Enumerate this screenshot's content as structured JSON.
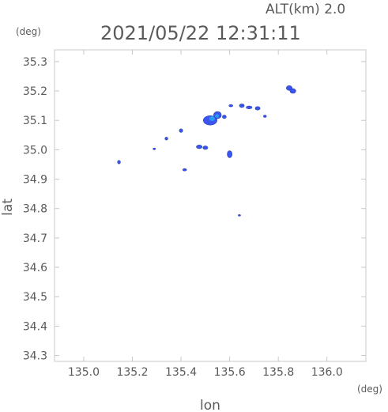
{
  "header": {
    "altitude_label": "ALT(km)  2.0",
    "timestamp": "2021/05/22 12:31:11",
    "y_unit": "(deg)",
    "x_unit": "(deg)"
  },
  "chart_data": {
    "type": "scatter",
    "title": "2021/05/22 12:31:11",
    "xlabel": "lon",
    "ylabel": "lat",
    "xlim": [
      134.88,
      136.16
    ],
    "ylim": [
      34.28,
      35.34
    ],
    "x_ticks": [
      "135.0",
      "135.2",
      "135.4",
      "135.6",
      "135.8",
      "136.0"
    ],
    "y_ticks": [
      "34.3",
      "34.4",
      "34.5",
      "34.6",
      "34.7",
      "34.8",
      "34.9",
      "35.0",
      "35.1",
      "35.2",
      "35.3"
    ],
    "grid": false,
    "colors": {
      "echo_main": "#3a55f2",
      "echo_strong": "#2a9cf0",
      "echo_dark": "#2a3fa8",
      "axis": "#c8c8c8",
      "text": "#5a5a5a"
    },
    "echoes": [
      {
        "lon": 135.145,
        "lat": 34.958,
        "rx": 0.006,
        "ry": 0.006
      },
      {
        "lon": 135.29,
        "lat": 35.003,
        "rx": 0.005,
        "ry": 0.003
      },
      {
        "lon": 135.34,
        "lat": 35.038,
        "rx": 0.006,
        "ry": 0.005
      },
      {
        "lon": 135.4,
        "lat": 35.065,
        "rx": 0.007,
        "ry": 0.006
      },
      {
        "lon": 135.415,
        "lat": 34.932,
        "rx": 0.008,
        "ry": 0.004
      },
      {
        "lon": 135.475,
        "lat": 35.01,
        "rx": 0.012,
        "ry": 0.006
      },
      {
        "lon": 135.5,
        "lat": 35.007,
        "rx": 0.01,
        "ry": 0.006
      },
      {
        "lon": 135.52,
        "lat": 35.1,
        "rx": 0.028,
        "ry": 0.016
      },
      {
        "lon": 135.55,
        "lat": 35.118,
        "rx": 0.016,
        "ry": 0.012
      },
      {
        "lon": 135.578,
        "lat": 35.112,
        "rx": 0.008,
        "ry": 0.006
      },
      {
        "lon": 135.6,
        "lat": 34.985,
        "rx": 0.01,
        "ry": 0.012
      },
      {
        "lon": 135.605,
        "lat": 35.15,
        "rx": 0.008,
        "ry": 0.004
      },
      {
        "lon": 135.65,
        "lat": 35.15,
        "rx": 0.01,
        "ry": 0.006
      },
      {
        "lon": 135.68,
        "lat": 35.144,
        "rx": 0.012,
        "ry": 0.005
      },
      {
        "lon": 135.715,
        "lat": 35.141,
        "rx": 0.01,
        "ry": 0.006
      },
      {
        "lon": 135.745,
        "lat": 35.114,
        "rx": 0.006,
        "ry": 0.004
      },
      {
        "lon": 135.845,
        "lat": 35.21,
        "rx": 0.012,
        "ry": 0.008
      },
      {
        "lon": 135.86,
        "lat": 35.2,
        "rx": 0.012,
        "ry": 0.008
      },
      {
        "lon": 135.64,
        "lat": 34.777,
        "rx": 0.004,
        "ry": 0.002
      }
    ],
    "strong_cores": [
      {
        "lon": 135.528,
        "lat": 35.106,
        "rx": 0.012,
        "ry": 0.008
      },
      {
        "lon": 135.548,
        "lat": 35.115,
        "rx": 0.008,
        "ry": 0.006
      }
    ]
  }
}
